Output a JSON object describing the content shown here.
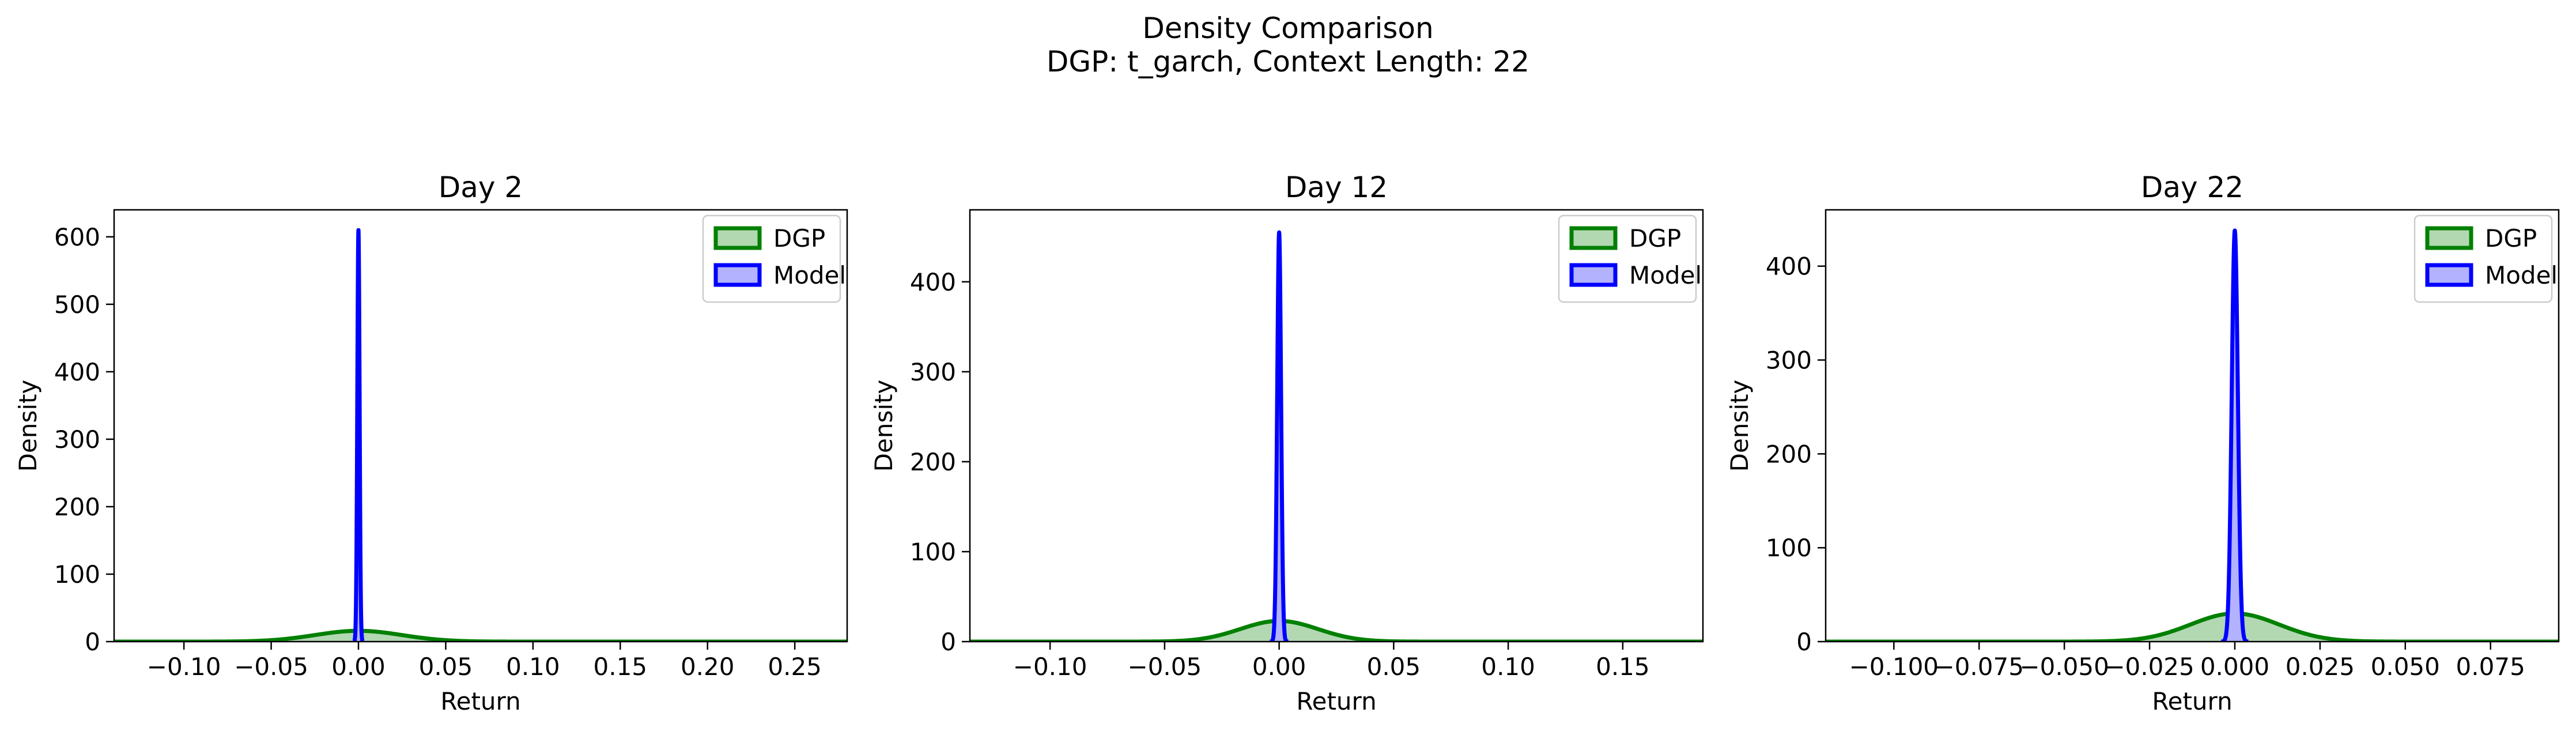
{
  "figure": {
    "title_line1": "Density Comparison",
    "title_line2": "DGP: t_garch, Context Length: 22"
  },
  "colors": {
    "dgp_line": "#008000",
    "dgp_fill": "#b2d8b2",
    "model_line": "#0000ff",
    "model_fill": "#b2b2ff"
  },
  "chart_data": [
    {
      "type": "area",
      "title": "Day 2",
      "xlabel": "Return",
      "ylabel": "Density",
      "xlim": [
        -0.14,
        0.28
      ],
      "ylim": [
        0,
        640
      ],
      "x_ticks": [
        -0.1,
        -0.05,
        0.0,
        0.05,
        0.1,
        0.15,
        0.2,
        0.25
      ],
      "x_tick_labels": [
        "−0.10",
        "−0.05",
        "0.00",
        "0.05",
        "0.10",
        "0.15",
        "0.20",
        "0.25"
      ],
      "y_ticks": [
        0,
        100,
        200,
        300,
        400,
        500,
        600
      ],
      "y_tick_labels": [
        "0",
        "100",
        "200",
        "300",
        "400",
        "500",
        "600"
      ],
      "legend_position": "top-right",
      "grid": false,
      "series": [
        {
          "name": "DGP",
          "kind": "gaussian",
          "mean": 0.0,
          "sd": 0.025,
          "peak": 16,
          "x_range": [
            -0.14,
            0.28
          ]
        },
        {
          "name": "Model",
          "kind": "gaussian",
          "mean": 0.0,
          "sd": 0.00065,
          "peak": 610,
          "x_range": [
            -0.003,
            0.003
          ]
        }
      ]
    },
    {
      "type": "area",
      "title": "Day 12",
      "xlabel": "Return",
      "ylabel": "Density",
      "xlim": [
        -0.135,
        0.185
      ],
      "ylim": [
        0,
        480
      ],
      "x_ticks": [
        -0.1,
        -0.05,
        0.0,
        0.05,
        0.1,
        0.15
      ],
      "x_tick_labels": [
        "−0.10",
        "−0.05",
        "0.00",
        "0.05",
        "0.10",
        "0.15"
      ],
      "y_ticks": [
        0,
        100,
        200,
        300,
        400
      ],
      "y_tick_labels": [
        "0",
        "100",
        "200",
        "300",
        "400"
      ],
      "legend_position": "top-right",
      "grid": false,
      "series": [
        {
          "name": "DGP",
          "kind": "gaussian",
          "mean": 0.0,
          "sd": 0.017,
          "peak": 23,
          "x_range": [
            -0.135,
            0.185
          ]
        },
        {
          "name": "Model",
          "kind": "gaussian",
          "mean": 0.0,
          "sd": 0.00085,
          "peak": 455,
          "x_range": [
            -0.004,
            0.004
          ]
        }
      ]
    },
    {
      "type": "area",
      "title": "Day 22",
      "xlabel": "Return",
      "ylabel": "Density",
      "xlim": [
        -0.12,
        0.095
      ],
      "ylim": [
        0,
        460
      ],
      "x_ticks": [
        -0.1,
        -0.075,
        -0.05,
        -0.025,
        0.0,
        0.025,
        0.05,
        0.075
      ],
      "x_tick_labels": [
        "−0.100",
        "−0.075",
        "−0.050",
        "−0.025",
        "0.000",
        "0.025",
        "0.050",
        "0.075"
      ],
      "y_ticks": [
        0,
        100,
        200,
        300,
        400
      ],
      "y_tick_labels": [
        "0",
        "100",
        "200",
        "300",
        "400"
      ],
      "legend_position": "top-right",
      "grid": false,
      "series": [
        {
          "name": "DGP",
          "kind": "gaussian",
          "mean": 0.0,
          "sd": 0.013,
          "peak": 30,
          "x_range": [
            -0.12,
            0.095
          ]
        },
        {
          "name": "Model",
          "kind": "gaussian",
          "mean": 0.0,
          "sd": 0.0009,
          "peak": 438,
          "x_range": [
            -0.004,
            0.004
          ]
        }
      ]
    }
  ]
}
